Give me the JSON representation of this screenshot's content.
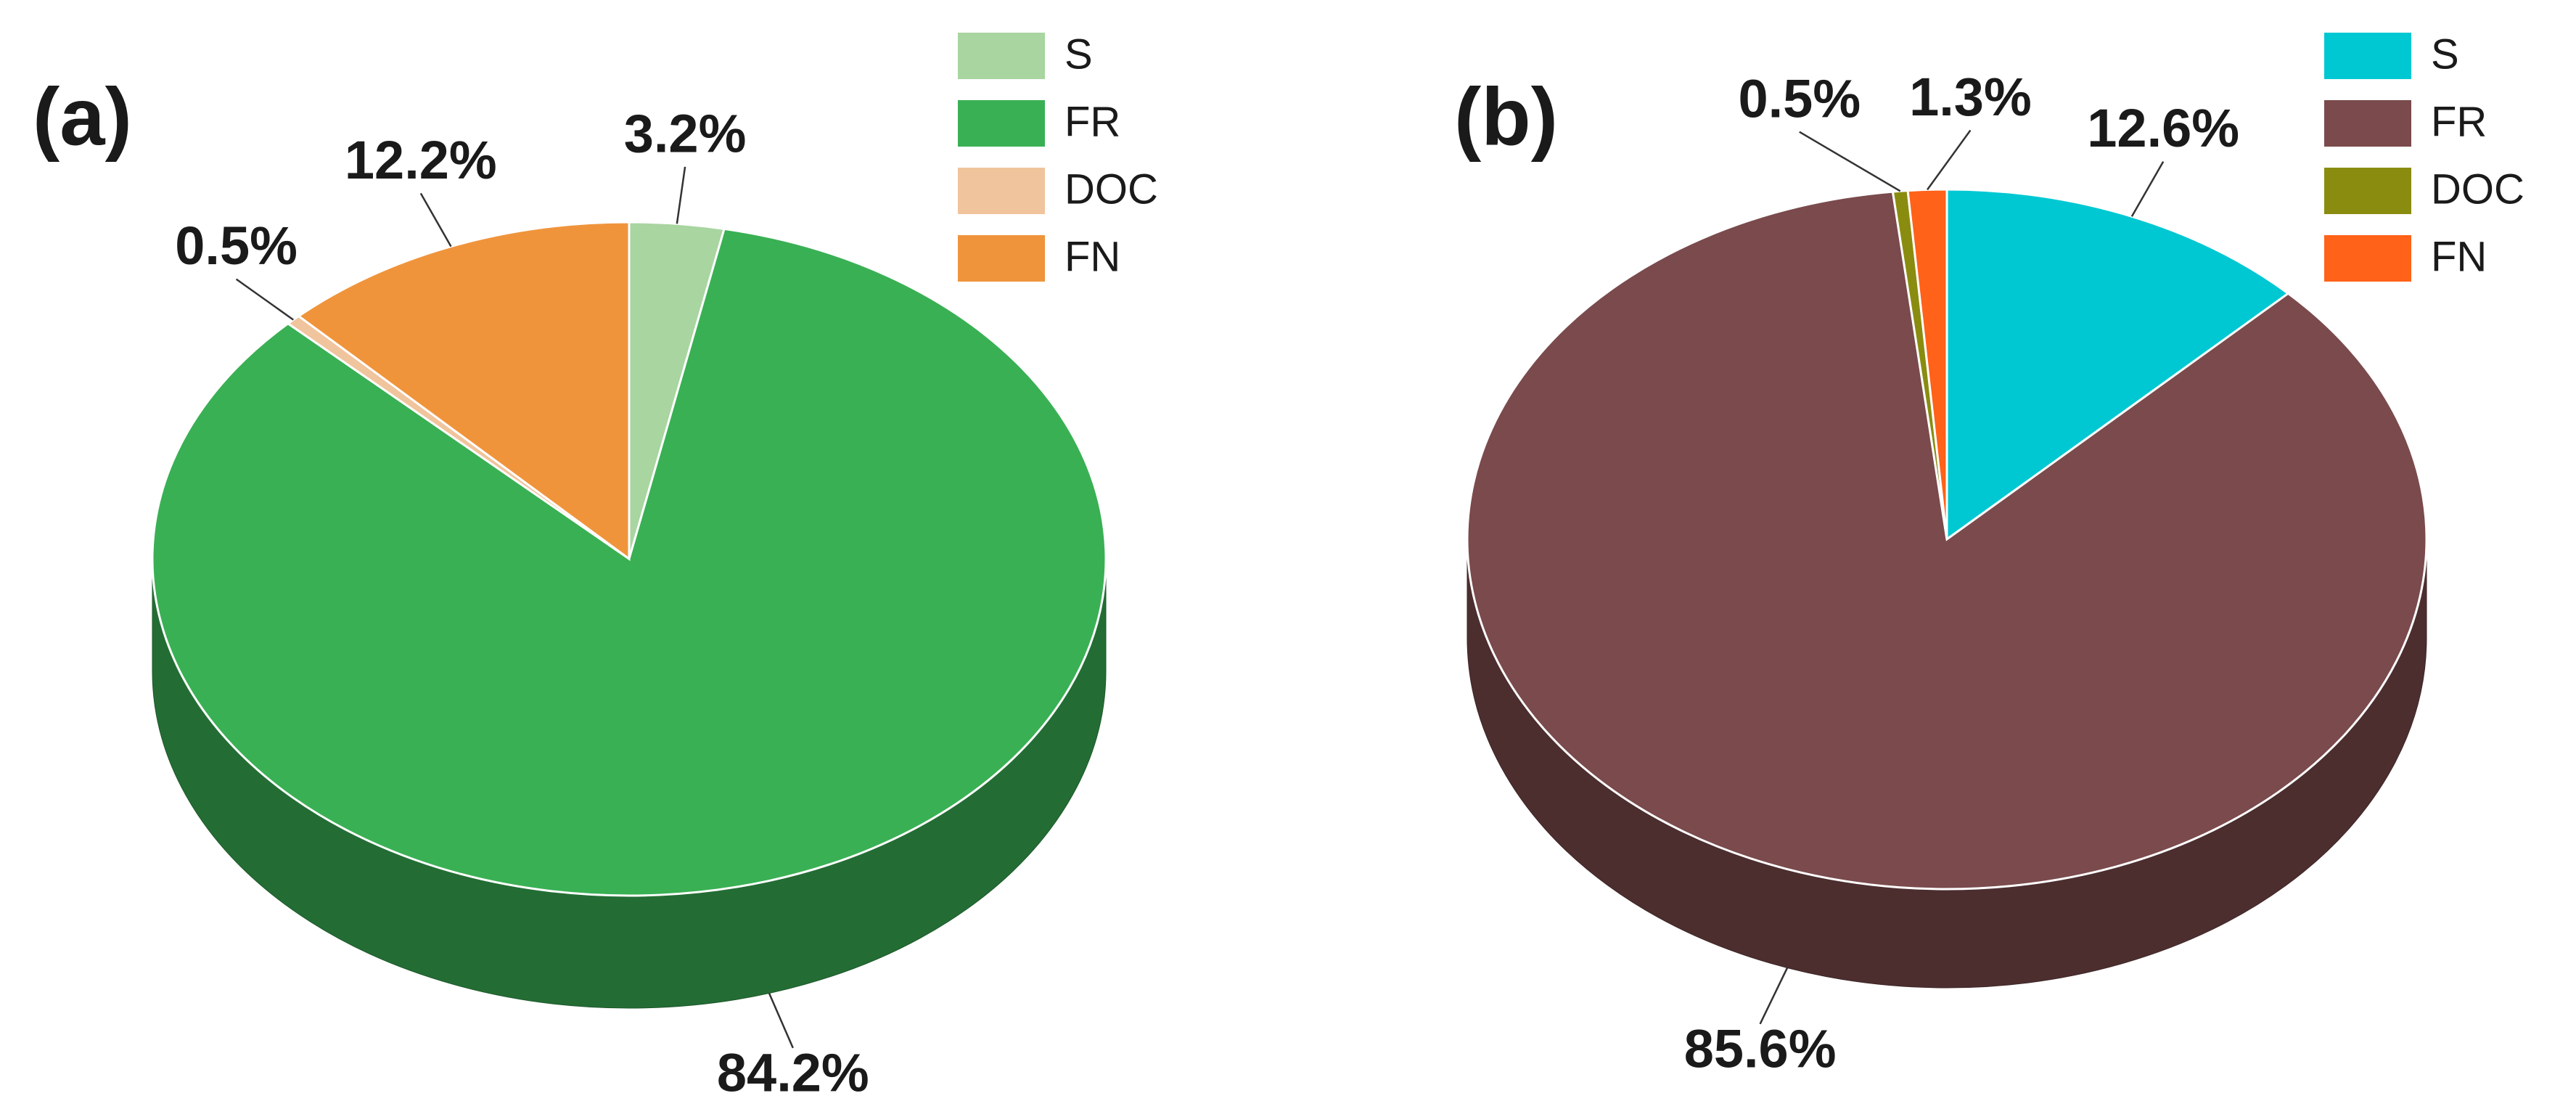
{
  "chart_data": [
    {
      "type": "pie",
      "title": "(a)",
      "categories": [
        "S",
        "FR",
        "DOC",
        "FN"
      ],
      "values": [
        3.2,
        84.2,
        0.5,
        12.2
      ],
      "value_labels": [
        "3.2%",
        "84.2%",
        "0.5%",
        "12.2%"
      ],
      "colors": [
        "#a8d5a0",
        "#39b054",
        "#f0c49c",
        "#f0943c"
      ],
      "legend": "top-right"
    },
    {
      "type": "pie",
      "title": "(b)",
      "categories": [
        "S",
        "FR",
        "DOC",
        "FN"
      ],
      "values": [
        12.6,
        85.6,
        0.5,
        1.3
      ],
      "value_labels": [
        "12.6%",
        "85.6%",
        "0.5%",
        "1.3%"
      ],
      "colors": [
        "#00c8d2",
        "#7a4a4c",
        "#8a8c10",
        "#ff6218"
      ],
      "legend": "top-right"
    }
  ]
}
